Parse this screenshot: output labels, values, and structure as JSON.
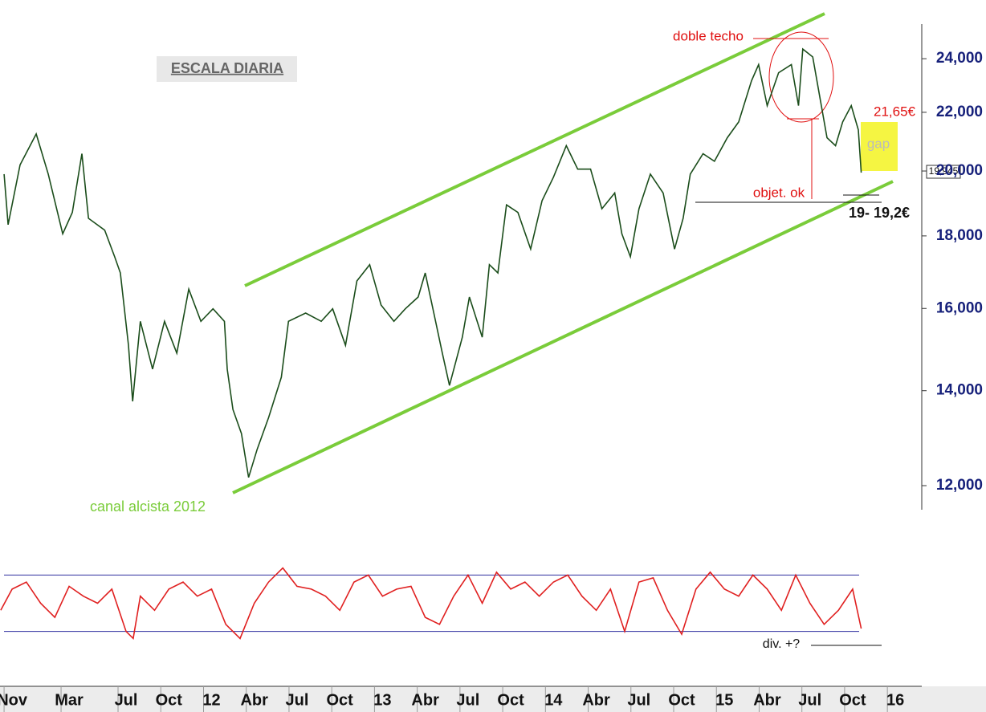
{
  "chart_data": [
    {
      "type": "line",
      "log_scale": true,
      "color": "#1b4d1b",
      "annotations": [
        "ESCALA DIARIA",
        "doble techo",
        "21,65€",
        "gap",
        "19,945",
        "objet. ok",
        "19- 19,2€",
        "canal alcista 2012"
      ],
      "x": [
        -0.56,
        -0.28,
        0.56,
        1.69,
        2.54,
        3.55,
        4.23,
        4.9,
        5.36,
        6.5,
        7.2,
        7.6,
        8.17,
        8.46,
        9.0,
        9.86,
        10.7,
        11.56,
        12.4,
        13.25,
        14.1,
        14.9,
        15.1,
        15.5,
        16.1,
        16.6,
        17.2,
        18.0,
        18.9,
        19.4,
        20.6,
        21.7,
        22.5,
        23.4,
        24.2,
        25.1,
        25.9,
        26.8,
        27.6,
        28.5,
        29.0,
        29.6,
        30.2,
        30.7,
        31.6,
        32.1,
        33.0,
        33.5,
        34.1,
        34.7,
        35.5,
        36.4,
        37.2,
        38.0,
        38.9,
        39.7,
        40.6,
        41.4,
        42.3,
        42.8,
        43.4,
        44.0,
        44.8,
        45.7,
        46.5,
        47.1,
        47.6,
        48.5,
        49.3,
        50.2,
        51.0,
        51.9,
        52.4,
        53.0,
        53.8,
        54.7,
        55.2,
        55.5,
        56.2,
        56.7,
        57.2,
        57.8,
        58.3,
        58.9,
        59.4,
        59.6
      ],
      "values": [
        19900,
        18330,
        20200,
        21240,
        19900,
        18060,
        18700,
        20570,
        18520,
        18170,
        17400,
        16950,
        15070,
        13760,
        15670,
        14500,
        15670,
        14880,
        16510,
        15670,
        15990,
        15670,
        14500,
        13580,
        13060,
        12160,
        12730,
        13400,
        14310,
        15670,
        15880,
        15670,
        15990,
        15070,
        16730,
        17180,
        16090,
        15670,
        15990,
        16300,
        16950,
        15880,
        14880,
        14120,
        15270,
        16300,
        15270,
        17180,
        16950,
        18930,
        18700,
        17620,
        19060,
        19800,
        20840,
        20060,
        20060,
        18810,
        19300,
        18060,
        17400,
        18810,
        19900,
        19300,
        17620,
        18520,
        19900,
        20570,
        20320,
        21110,
        21660,
        23160,
        23770,
        22240,
        23460,
        23770,
        22240,
        24380,
        24070,
        22540,
        21110,
        20840,
        21660,
        22240,
        21380,
        19945
      ],
      "xlim": [
        -0.85,
        63.4
      ],
      "xticks": [
        {
          "value": 0,
          "label": "Nov"
        },
        {
          "value": 4,
          "label": "Mar"
        },
        {
          "value": 8,
          "label": "Jul"
        },
        {
          "value": 11,
          "label": "Oct"
        },
        {
          "value": 14,
          "label": "12"
        },
        {
          "value": 17,
          "label": "Abr"
        },
        {
          "value": 20,
          "label": "Jul"
        },
        {
          "value": 23,
          "label": "Oct"
        },
        {
          "value": 26,
          "label": "13"
        },
        {
          "value": 29,
          "label": "Abr"
        },
        {
          "value": 32,
          "label": "Jul"
        },
        {
          "value": 35,
          "label": "Oct"
        },
        {
          "value": 38,
          "label": "14"
        },
        {
          "value": 41,
          "label": "Abr"
        },
        {
          "value": 44,
          "label": "Jul"
        },
        {
          "value": 47,
          "label": "Oct"
        },
        {
          "value": 50,
          "label": "15"
        },
        {
          "value": 53,
          "label": "Abr"
        },
        {
          "value": 56,
          "label": "Jul"
        },
        {
          "value": 59,
          "label": "Oct"
        },
        {
          "value": 62,
          "label": "16"
        }
      ],
      "ylim": [
        11540,
        26400
      ],
      "yticks": [
        {
          "value": 12000,
          "label": "12,000"
        },
        {
          "value": 14000,
          "label": "14,000"
        },
        {
          "value": 16000,
          "label": "16,000"
        },
        {
          "value": 18000,
          "label": "18,000"
        },
        {
          "value": 20000,
          "label": "20,000"
        },
        {
          "value": 22000,
          "label": "22,000"
        },
        {
          "value": 24000,
          "label": "24,000"
        }
      ]
    },
    {
      "type": "line",
      "color": "#e02020",
      "levels": [
        70,
        30
      ],
      "level_color": "#3030a0",
      "annotations": [
        "div. +?"
      ],
      "x": [
        -0.8,
        0,
        1,
        2,
        3,
        4,
        5,
        6,
        7,
        8,
        8.5,
        9,
        10,
        11,
        12,
        13,
        14,
        15,
        16,
        17,
        18,
        19,
        20,
        21,
        22,
        23,
        24,
        25,
        26,
        27,
        28,
        29,
        30,
        31,
        32,
        33,
        34,
        35,
        36,
        37,
        38,
        39,
        40,
        41,
        42,
        43,
        44,
        45,
        46,
        47,
        48,
        49,
        50,
        51,
        52,
        53,
        54,
        55,
        56,
        57,
        58,
        59,
        59.6
      ],
      "values": [
        45,
        60,
        65,
        50,
        40,
        62,
        55,
        50,
        60,
        30,
        25,
        55,
        45,
        60,
        65,
        55,
        60,
        35,
        25,
        50,
        65,
        75,
        62,
        60,
        55,
        45,
        65,
        70,
        55,
        60,
        62,
        40,
        35,
        55,
        70,
        50,
        72,
        60,
        65,
        55,
        65,
        70,
        55,
        45,
        60,
        30,
        65,
        68,
        45,
        28,
        60,
        72,
        60,
        55,
        70,
        60,
        45,
        70,
        50,
        35,
        45,
        60,
        32
      ],
      "xlim": [
        -0.85,
        63.4
      ],
      "ylim": [
        11,
        85
      ]
    }
  ]
}
